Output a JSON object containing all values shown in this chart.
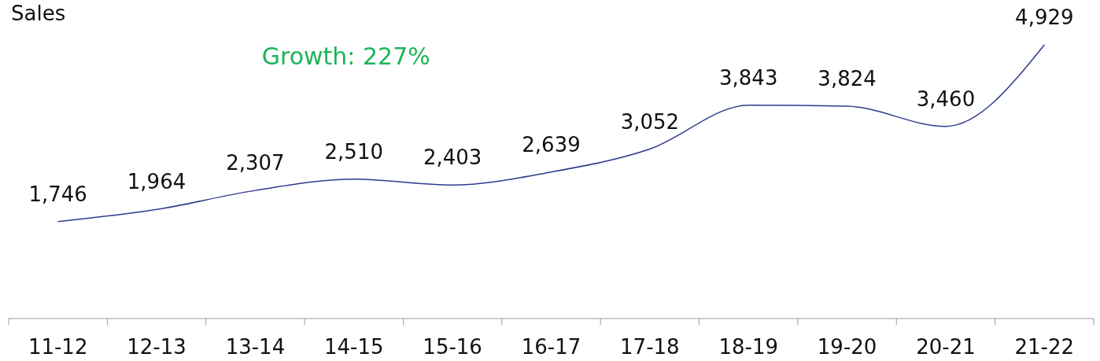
{
  "chart_data": {
    "type": "line",
    "title": "Sales",
    "annotations": [
      "Growth: 227%"
    ],
    "categories": [
      "11-12",
      "12-13",
      "13-14",
      "14-15",
      "15-16",
      "16-17",
      "17-18",
      "18-19",
      "19-20",
      "20-21",
      "21-22"
    ],
    "series": [
      {
        "color": "#2e3a8c",
        "values": [
          1746,
          1964,
          2307,
          2510,
          2403,
          2639,
          3052,
          3843,
          3824,
          3460,
          4929
        ],
        "value_labels": [
          "1,746",
          "1,964",
          "2,307",
          "2,510",
          "2,403",
          "2,639",
          "3,052",
          "3,843",
          "3,824",
          "3,460",
          "4,929"
        ]
      }
    ],
    "marker": "none",
    "line_style": "solid"
  }
}
